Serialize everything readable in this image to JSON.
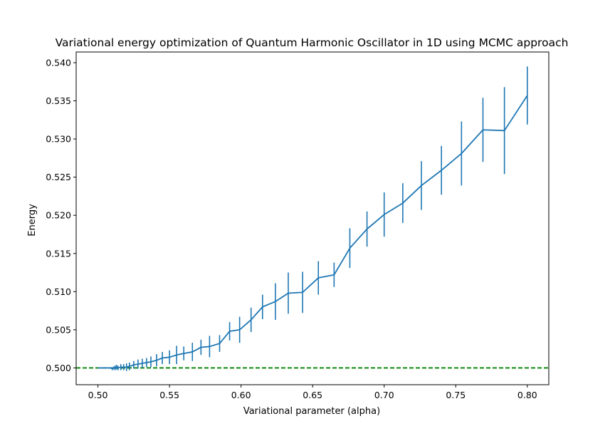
{
  "chart_data": {
    "type": "line",
    "title": "Variational energy optimization of Quantum Harmonic Oscillator in 1D using MCMC approach",
    "xlabel": "Variational parameter (alpha)",
    "ylabel": "Energy",
    "xlim": [
      0.4848,
      0.815
    ],
    "ylim": [
      0.4978,
      0.5414
    ],
    "xticks": [
      0.5,
      0.55,
      0.6,
      0.65,
      0.7,
      0.75,
      0.8
    ],
    "xtick_labels": [
      "0.50",
      "0.55",
      "0.60",
      "0.65",
      "0.70",
      "0.75",
      "0.80"
    ],
    "yticks": [
      0.5,
      0.505,
      0.51,
      0.515,
      0.52,
      0.525,
      0.53,
      0.535,
      0.54
    ],
    "ytick_labels": [
      "0.500",
      "0.505",
      "0.510",
      "0.515",
      "0.520",
      "0.525",
      "0.530",
      "0.535",
      "0.540"
    ],
    "grid": false,
    "colors": {
      "series": "#1f77b4",
      "reference": "#008000"
    },
    "reference_line": {
      "y": 0.5,
      "style": "dashed"
    },
    "series": [
      {
        "x": [
          0.5,
          0.505,
          0.509,
          0.51,
          0.511,
          0.512,
          0.513,
          0.514,
          0.516,
          0.518,
          0.52,
          0.522,
          0.525,
          0.528,
          0.531,
          0.534,
          0.537,
          0.541,
          0.545,
          0.55,
          0.555,
          0.56,
          0.566,
          0.572,
          0.578,
          0.585,
          0.592,
          0.599,
          0.607,
          0.615,
          0.624,
          0.633,
          0.643,
          0.654,
          0.665,
          0.676,
          0.688,
          0.7,
          0.713,
          0.726,
          0.74,
          0.754,
          0.769,
          0.784,
          0.8
        ],
        "y": [
          0.5,
          0.5,
          0.5,
          0.4999,
          0.5,
          0.5,
          0.5001,
          0.5,
          0.5001,
          0.5001,
          0.5001,
          0.5002,
          0.5004,
          0.5005,
          0.5006,
          0.5007,
          0.5008,
          0.501,
          0.5013,
          0.5014,
          0.5017,
          0.5019,
          0.5021,
          0.5027,
          0.5028,
          0.5032,
          0.5048,
          0.505,
          0.5063,
          0.508,
          0.5087,
          0.5098,
          0.5099,
          0.5118,
          0.5122,
          0.5157,
          0.5182,
          0.5201,
          0.5216,
          0.5239,
          0.5259,
          0.5281,
          0.5312,
          0.5311,
          0.5357
        ],
        "err": [
          0.0,
          0.0001,
          0.0001,
          0.0002,
          0.0002,
          0.0003,
          0.0003,
          0.0003,
          0.0004,
          0.0004,
          0.0005,
          0.0005,
          0.0005,
          0.0006,
          0.0006,
          0.0006,
          0.0007,
          0.0008,
          0.0008,
          0.0009,
          0.0012,
          0.0009,
          0.0012,
          0.001,
          0.0014,
          0.0011,
          0.0012,
          0.0017,
          0.0016,
          0.0016,
          0.0024,
          0.0027,
          0.0027,
          0.0022,
          0.0016,
          0.0026,
          0.0023,
          0.0029,
          0.0026,
          0.0032,
          0.0032,
          0.0042,
          0.0042,
          0.0057,
          0.0038
        ]
      }
    ]
  }
}
